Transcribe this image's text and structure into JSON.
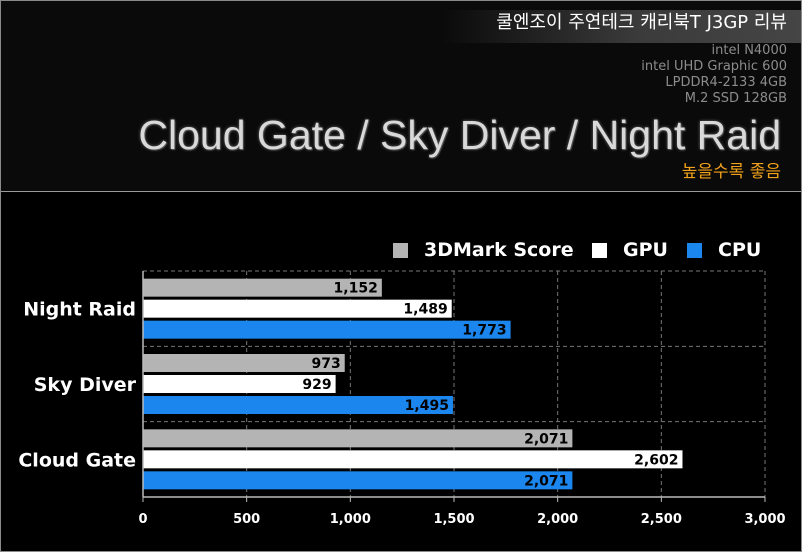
{
  "header": {
    "review_title": "쿨엔조이 주연테크 캐리북T J3GP 리뷰",
    "specs": [
      "intel N4000",
      "intel UHD Graphic 600",
      "LPDDR4-2133 4GB",
      "M.2 SSD 128GB"
    ],
    "main_title": "Cloud Gate / Sky Diver / Night Raid",
    "note": "높을수록 좋음"
  },
  "colors": {
    "score": "#b4b4b4",
    "gpu": "#ffffff",
    "cpu": "#1b86ee",
    "note": "#f2a21a",
    "background": "#000000"
  },
  "chart_data": {
    "type": "bar",
    "orientation": "horizontal",
    "title": "Cloud Gate / Sky Diver / Night Raid",
    "categories": [
      "Night Raid",
      "Sky Diver",
      "Cloud Gate"
    ],
    "series": [
      {
        "name": "3DMark Score",
        "values": [
          1152,
          973,
          2071
        ],
        "labels": [
          "1,152",
          "973",
          "2,071"
        ]
      },
      {
        "name": "GPU",
        "values": [
          1489,
          929,
          2602
        ],
        "labels": [
          "1,489",
          "929",
          "2,602"
        ]
      },
      {
        "name": "CPU",
        "values": [
          1773,
          1495,
          2071
        ],
        "labels": [
          "1,773",
          "1,495",
          "2,071"
        ]
      }
    ],
    "xlim": [
      0,
      3000
    ],
    "ticks": [
      0,
      500,
      1000,
      1500,
      2000,
      2500,
      3000
    ],
    "tick_labels": [
      "0",
      "500",
      "1,000",
      "1,500",
      "2,000",
      "2,500",
      "3,000"
    ],
    "grid": true,
    "legend_position": "top-right"
  }
}
